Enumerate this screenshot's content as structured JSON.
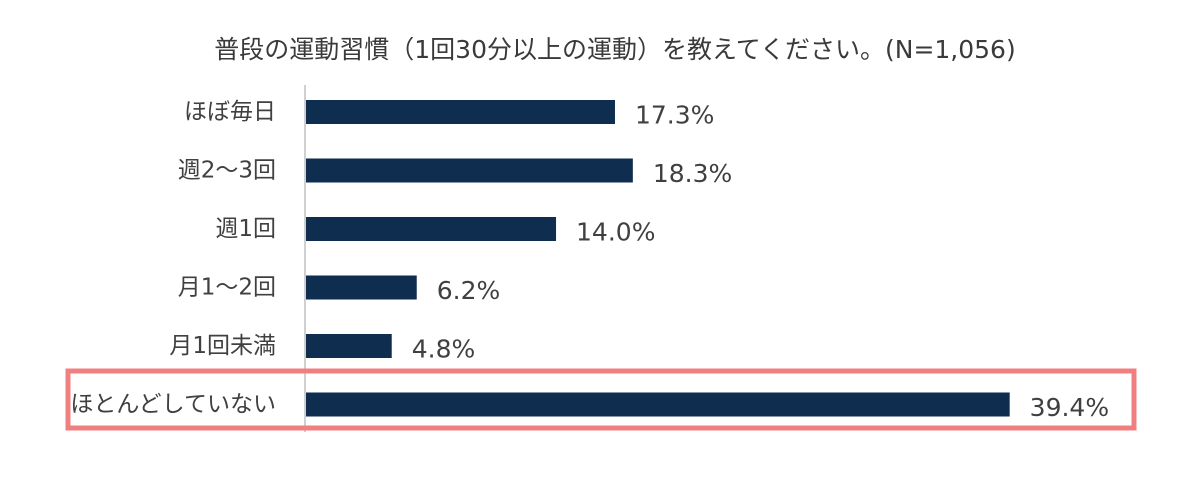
{
  "chart_data": {
    "type": "bar",
    "orientation": "horizontal",
    "title": "普段の運動習慣（1回30分以上の運動）を教えてください。(N=1,056)",
    "categories": [
      "ほぼ毎日",
      "週2〜3回",
      "週1回",
      "月1〜2回",
      "月1回未満",
      "ほとんどしていない"
    ],
    "values": [
      17.3,
      18.3,
      14.0,
      6.2,
      4.8,
      39.4
    ],
    "value_labels": [
      "17.3%",
      "18.3%",
      "14.0%",
      "6.2%",
      "4.8%",
      "39.4%"
    ],
    "unit": "%",
    "xlim": [
      0,
      40
    ],
    "grid": false,
    "legend": "none",
    "highlighted_category_index": 5,
    "colors": {
      "bar": "#0f2d4f",
      "highlight_border": "#f08080",
      "axis": "#d0d0d0"
    }
  }
}
